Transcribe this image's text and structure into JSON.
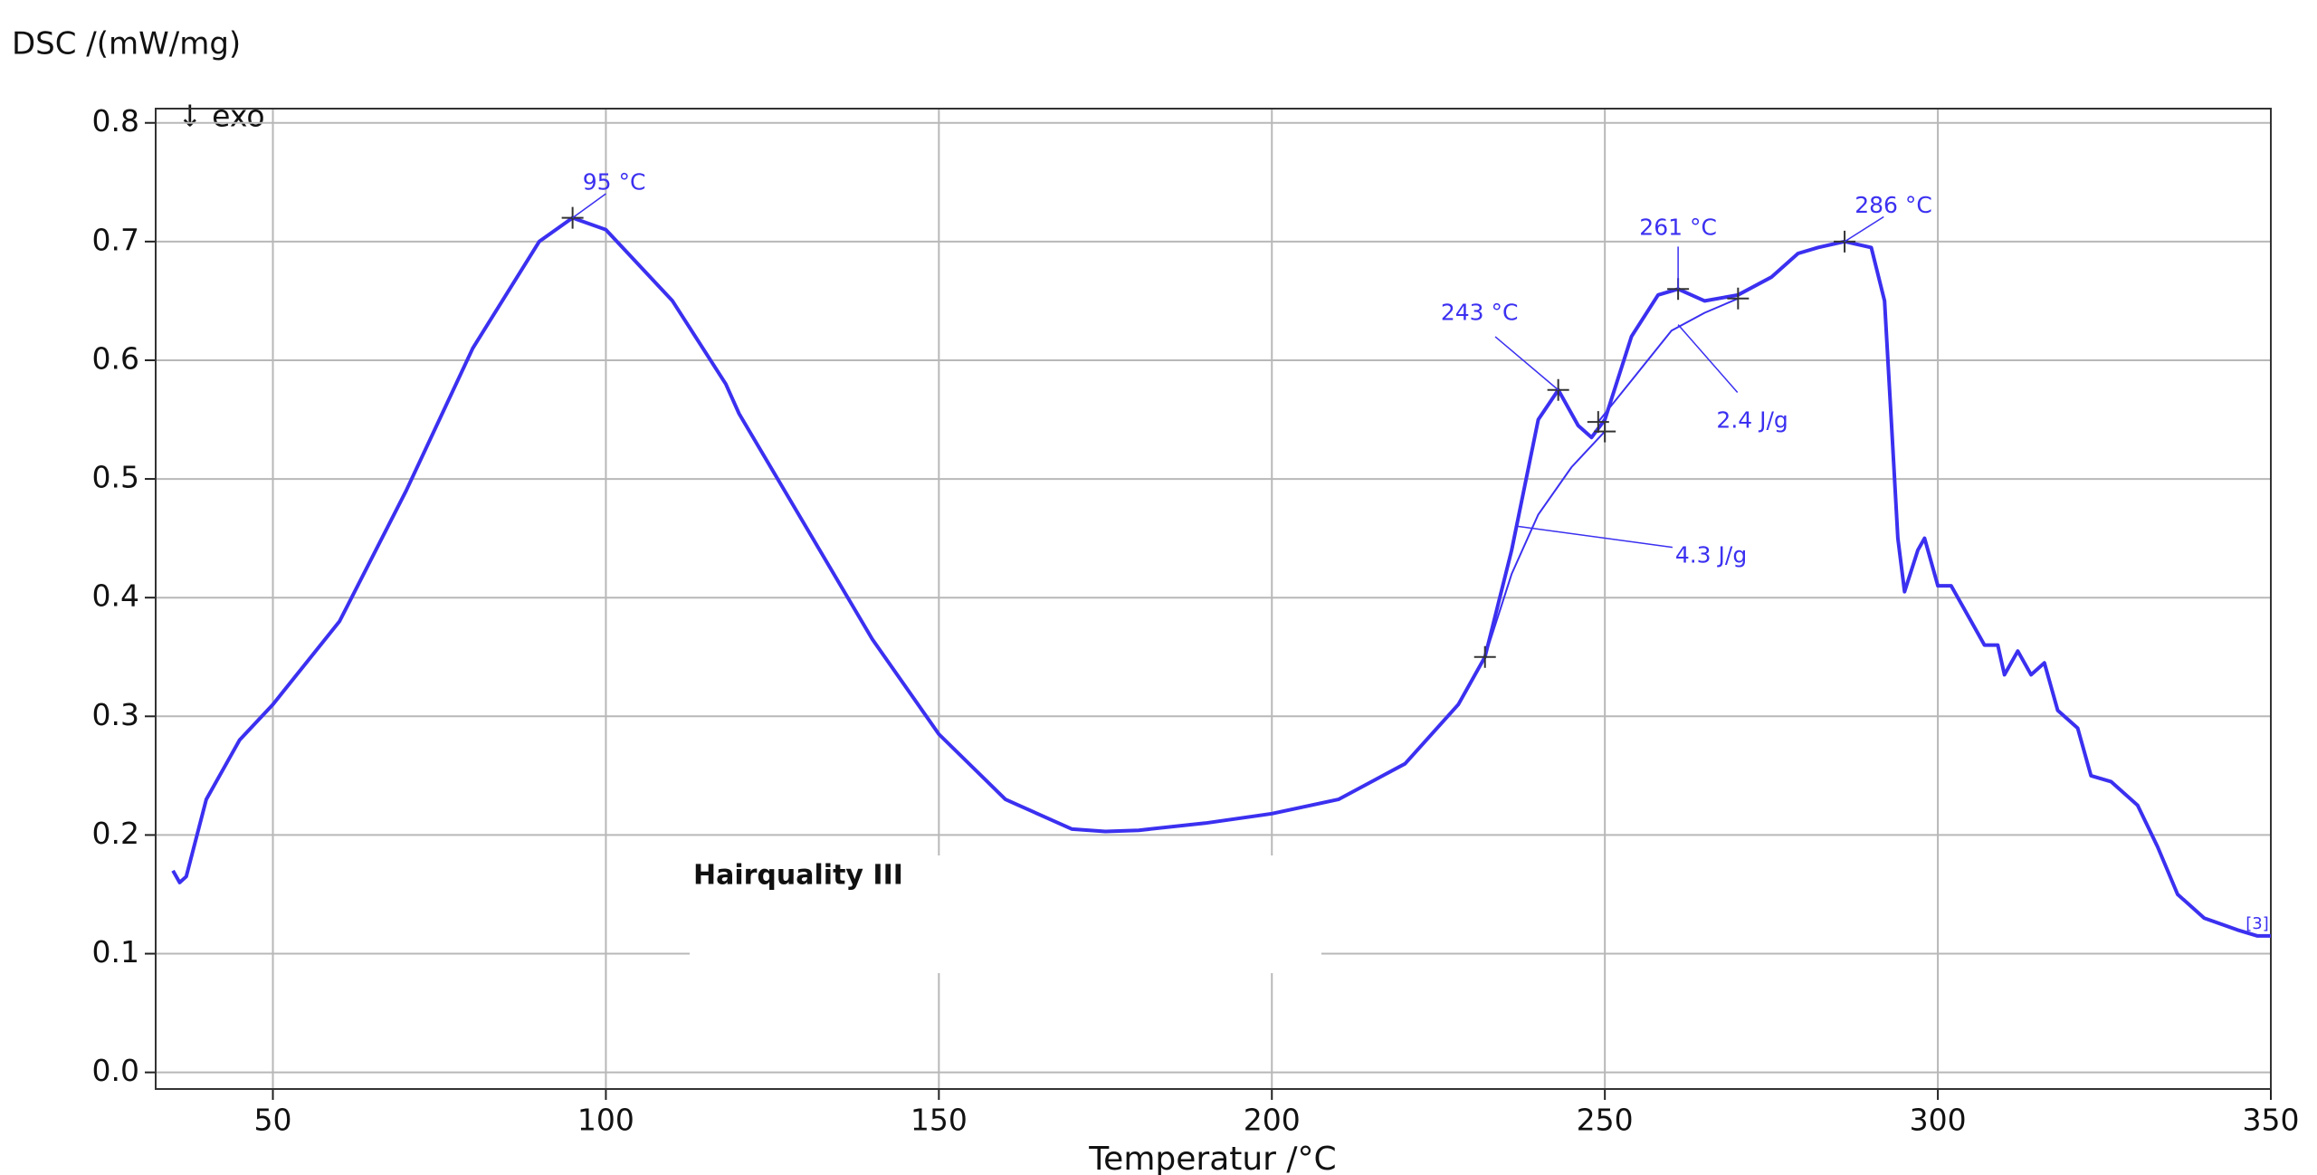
{
  "chart_data": {
    "type": "line",
    "title": "DSC /(mW/mg)",
    "x_label": "Temperatur /°C",
    "corner_note": "↓ exo",
    "xlim": [
      32.4,
      350
    ],
    "ylim": [
      -0.014,
      0.812
    ],
    "xticks": [
      50,
      100,
      150,
      200,
      250,
      300,
      350
    ],
    "yticks": [
      {
        "value": 0,
        "label": "0.0"
      },
      0.1,
      0.2,
      0.3,
      0.4,
      0.5,
      0.6,
      0.7,
      0.8
    ],
    "grid": true,
    "legend": "lower center",
    "series": [
      {
        "name": "Hairquality III",
        "color": "#3b30f0",
        "x": [
          35,
          36,
          37,
          40,
          45,
          50,
          60,
          70,
          80,
          90,
          95,
          100,
          110,
          118,
          120,
          130,
          140,
          150,
          160,
          170,
          175,
          180,
          190,
          200,
          210,
          220,
          228,
          232,
          236,
          240,
          243,
          246,
          248,
          250,
          254,
          258,
          261,
          265,
          270,
          275,
          279,
          282,
          286,
          290,
          292,
          293,
          294,
          295,
          297,
          298,
          300,
          302,
          305,
          307,
          309,
          310,
          312,
          314,
          316,
          318,
          321,
          323,
          326,
          330,
          333,
          336,
          340,
          345,
          348,
          350
        ],
        "values": [
          0.17,
          0.16,
          0.165,
          0.23,
          0.28,
          0.31,
          0.38,
          0.49,
          0.61,
          0.7,
          0.72,
          0.71,
          0.65,
          0.58,
          0.555,
          0.46,
          0.365,
          0.285,
          0.23,
          0.205,
          0.203,
          0.204,
          0.21,
          0.218,
          0.23,
          0.26,
          0.31,
          0.35,
          0.44,
          0.55,
          0.575,
          0.545,
          0.535,
          0.55,
          0.62,
          0.655,
          0.66,
          0.65,
          0.655,
          0.67,
          0.69,
          0.695,
          0.7,
          0.695,
          0.65,
          0.55,
          0.45,
          0.405,
          0.44,
          0.45,
          0.41,
          0.41,
          0.38,
          0.36,
          0.36,
          0.335,
          0.355,
          0.335,
          0.345,
          0.305,
          0.29,
          0.25,
          0.245,
          0.225,
          0.19,
          0.15,
          0.13,
          0.12,
          0.115,
          0.115
        ]
      },
      {
        "color": "#3b30f0",
        "x": [
          232,
          236,
          240,
          245,
          250
        ],
        "values": [
          0.35,
          0.42,
          0.47,
          0.51,
          0.54
        ]
      },
      {
        "color": "#3b30f0",
        "x": [
          249,
          255,
          260,
          265,
          270
        ],
        "values": [
          0.548,
          0.59,
          0.625,
          0.64,
          0.652
        ]
      }
    ],
    "annotations": [
      {
        "text": "95 °C",
        "x": 95,
        "y": 0.72
      },
      {
        "text": "243 °C",
        "x": 243,
        "y": 0.575
      },
      {
        "text": "261 °C",
        "x": 261,
        "y": 0.66
      },
      {
        "text": "286 °C",
        "x": 286,
        "y": 0.7
      },
      {
        "text": "2.4 J/g",
        "x": 261,
        "y": 0.63
      },
      {
        "text": "4.3 J/g",
        "x": 237,
        "y": 0.46
      },
      {
        "text": "[3]",
        "x": 350,
        "y": 0.115
      }
    ]
  }
}
